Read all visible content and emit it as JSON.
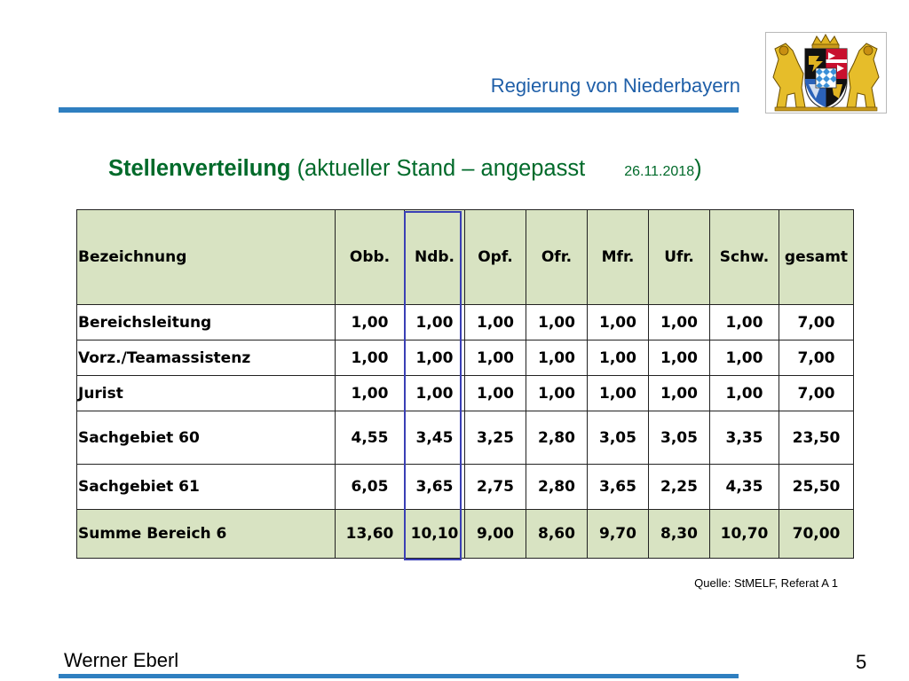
{
  "header": {
    "title": "Regierung von Niederbayern"
  },
  "slide": {
    "title_bold": "Stellenverteilung",
    "title_rest": " (aktueller Stand – angepasst",
    "date": "26.11.2018",
    "close_paren": ")"
  },
  "table": {
    "columns": [
      "Bezeichnung",
      "Obb.",
      "Ndb.",
      "Opf.",
      "Ofr.",
      "Mfr.",
      "Ufr.",
      "Schw.",
      "gesamt"
    ],
    "rows": [
      [
        "Bereichsleitung",
        "1,00",
        "1,00",
        "1,00",
        "1,00",
        "1,00",
        "1,00",
        "1,00",
        "7,00"
      ],
      [
        "Vorz./Teamassistenz",
        "1,00",
        "1,00",
        "1,00",
        "1,00",
        "1,00",
        "1,00",
        "1,00",
        "7,00"
      ],
      [
        "Jurist",
        "1,00",
        "1,00",
        "1,00",
        "1,00",
        "1,00",
        "1,00",
        "1,00",
        "7,00"
      ],
      [
        "Sachgebiet 60",
        "4,55",
        "3,45",
        "3,25",
        "2,80",
        "3,05",
        "3,05",
        "3,35",
        "23,50"
      ],
      [
        "Sachgebiet 61",
        "6,05",
        "3,65",
        "2,75",
        "2,80",
        "3,65",
        "2,25",
        "4,35",
        "25,50"
      ],
      [
        "Summe Bereich 6",
        "13,60",
        "10,10",
        "9,00",
        "8,60",
        "9,70",
        "8,30",
        "10,70",
        "70,00"
      ]
    ],
    "highlighted_column": "Ndb."
  },
  "source": "Quelle: StMELF, Referat A 1",
  "footer": {
    "author": "Werner Eberl",
    "page_number": "5"
  },
  "colors": {
    "header_blue": "#1f5fa8",
    "rule_blue": "#2f7fc0",
    "title_green": "#006a2a",
    "table_header_fill": "#d8e3c2",
    "highlight_border": "#3a3fb5"
  },
  "logo": {
    "icon": "bavarian-coat-of-arms-icon"
  }
}
